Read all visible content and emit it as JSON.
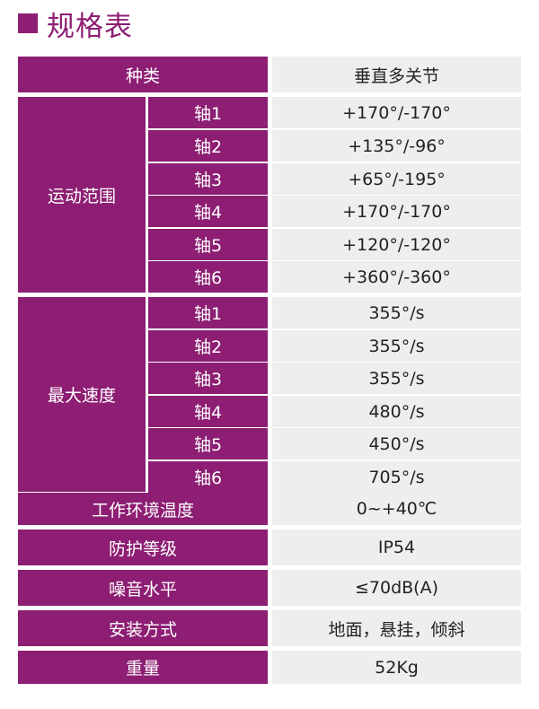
{
  "title": "规格表",
  "colors": {
    "accent": "#8d1e73",
    "value_bg": "#eeeeee"
  },
  "rows": {
    "type": {
      "label": "种类",
      "value": "垂直多关节"
    },
    "range": {
      "label": "运动范围",
      "axes": [
        {
          "axis": "轴1",
          "value": "+170°/-170°"
        },
        {
          "axis": "轴2",
          "value": "+135°/-96°"
        },
        {
          "axis": "轴3",
          "value": "+65°/-195°"
        },
        {
          "axis": "轴4",
          "value": "+170°/-170°"
        },
        {
          "axis": "轴5",
          "value": "+120°/-120°"
        },
        {
          "axis": "轴6",
          "value": "+360°/-360°"
        }
      ]
    },
    "speed": {
      "label": "最大速度",
      "axes": [
        {
          "axis": "轴1",
          "value": "355°/s"
        },
        {
          "axis": "轴2",
          "value": "355°/s"
        },
        {
          "axis": "轴3",
          "value": "355°/s"
        },
        {
          "axis": "轴4",
          "value": "480°/s"
        },
        {
          "axis": "轴5",
          "value": "450°/s"
        },
        {
          "axis": "轴6",
          "value": "705°/s"
        }
      ]
    },
    "temperature": {
      "label": "工作环境温度",
      "value": "0~+40℃"
    },
    "protection": {
      "label": "防护等级",
      "value": "IP54"
    },
    "noise": {
      "label": "噪音水平",
      "value": "≤70dB(A)"
    },
    "mounting": {
      "label": "安装方式",
      "value": "地面，悬挂，倾斜"
    },
    "weight": {
      "label": "重量",
      "value": "52Kg"
    }
  }
}
